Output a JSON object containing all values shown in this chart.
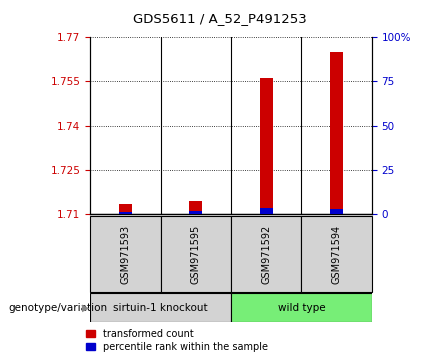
{
  "title": "GDS5611 / A_52_P491253",
  "samples": [
    "GSM971593",
    "GSM971595",
    "GSM971592",
    "GSM971594"
  ],
  "groups": [
    "sirtuin-1 knockout",
    "sirtuin-1 knockout",
    "wild type",
    "wild type"
  ],
  "transformed_counts": [
    1.7135,
    1.7145,
    1.756,
    1.765
  ],
  "percentile_ranks": [
    1.5,
    2.0,
    3.5,
    3.0
  ],
  "ylim_left": [
    1.71,
    1.77
  ],
  "ylim_right": [
    0,
    100
  ],
  "yticks_left": [
    1.71,
    1.725,
    1.74,
    1.755,
    1.77
  ],
  "yticks_right": [
    0,
    25,
    50,
    75,
    100
  ],
  "red_color": "#CC0000",
  "blue_color": "#0000CC",
  "sample_bg_color": "#d3d3d3",
  "ko_group_color": "#d3d3d3",
  "wt_group_color": "#77ee77",
  "legend_red_label": "transformed count",
  "legend_blue_label": "percentile rank within the sample",
  "genotype_label": "genotype/variation"
}
